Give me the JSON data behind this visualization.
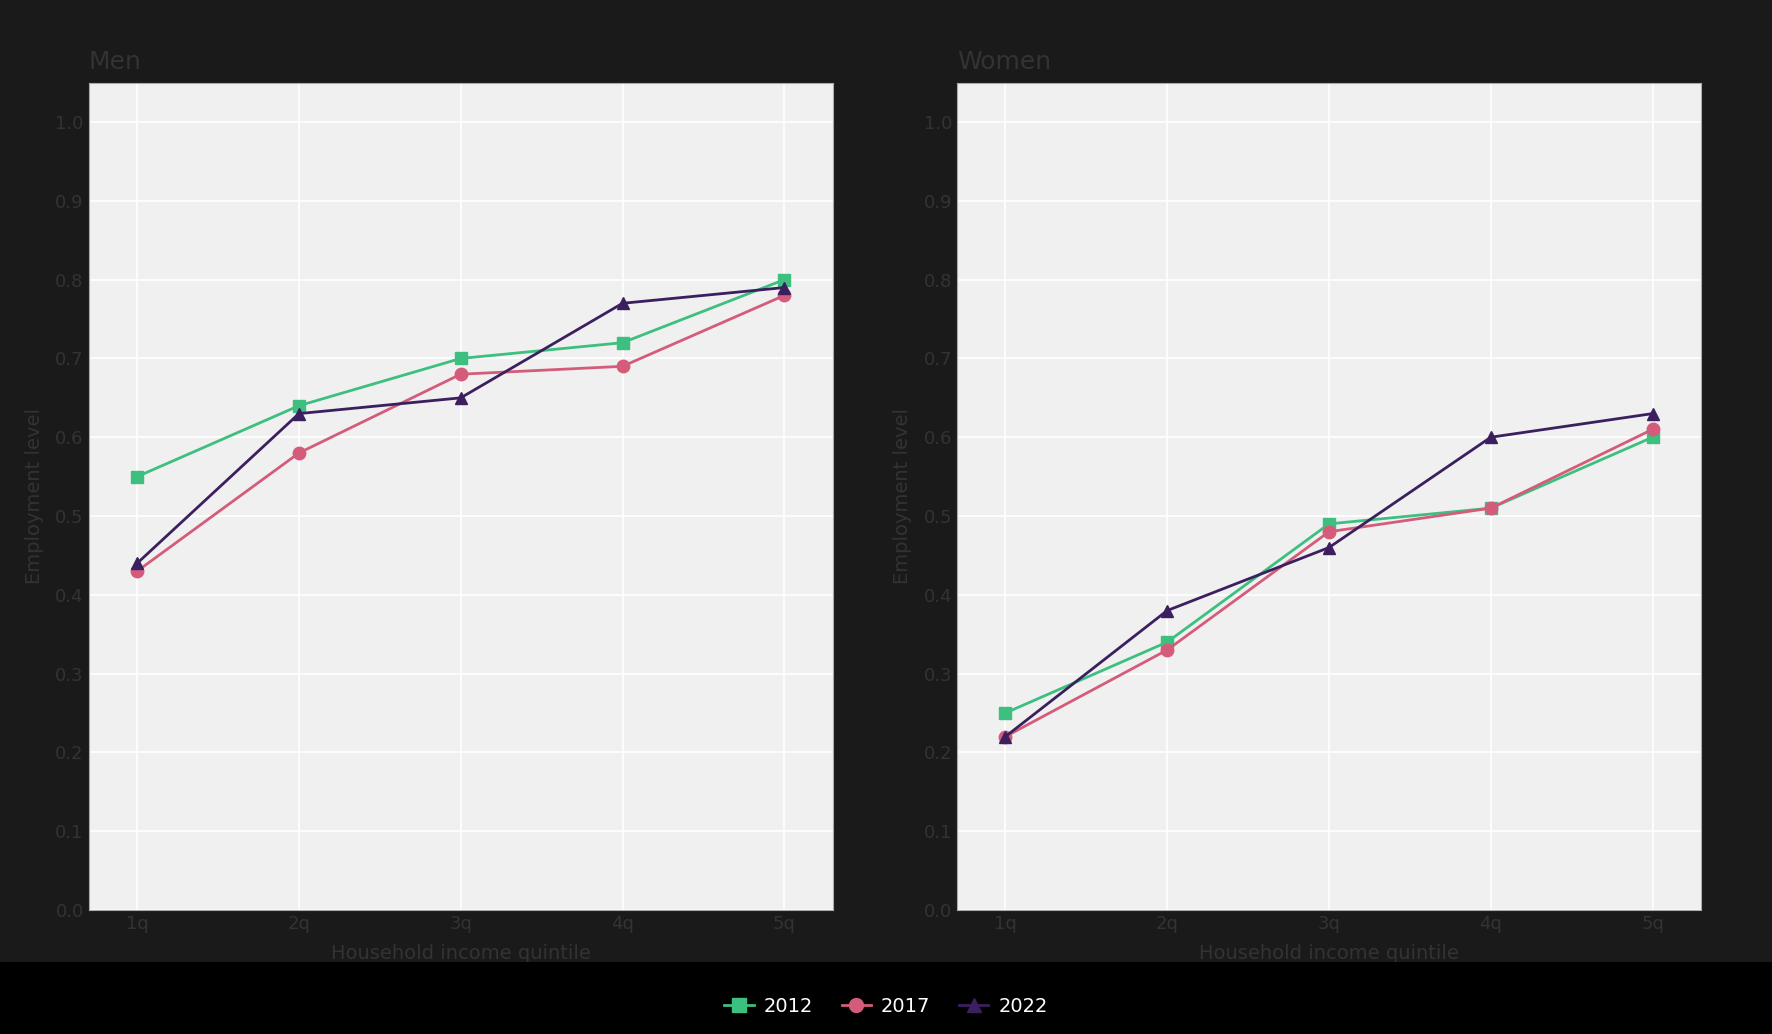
{
  "x_labels": [
    "1q",
    "2q",
    "3q",
    "4q",
    "5q"
  ],
  "x_values": [
    1,
    2,
    3,
    4,
    5
  ],
  "men": {
    "2012": [
      0.55,
      0.64,
      0.7,
      0.72,
      0.8
    ],
    "2017": [
      0.43,
      0.58,
      0.68,
      0.69,
      0.78
    ],
    "2022": [
      0.44,
      0.63,
      0.65,
      0.77,
      0.79
    ]
  },
  "women": {
    "2012": [
      0.25,
      0.34,
      0.49,
      0.51,
      0.6
    ],
    "2017": [
      0.22,
      0.33,
      0.48,
      0.51,
      0.61
    ],
    "2022": [
      0.22,
      0.38,
      0.46,
      0.6,
      0.63
    ]
  },
  "colors": {
    "2012": "#3dbf7f",
    "2017": "#d45c7a",
    "2022": "#3b1f5e"
  },
  "markers": {
    "2012": "s",
    "2017": "o",
    "2022": "^"
  },
  "ylabel": "Employment level",
  "xlabel": "Household income quintile",
  "title_men": "Men",
  "title_women": "Women",
  "ylim": [
    0.0,
    1.05
  ],
  "yticks": [
    0.0,
    0.1,
    0.2,
    0.3,
    0.4,
    0.5,
    0.6,
    0.7,
    0.8,
    0.9,
    1.0
  ],
  "bg_color": "#f0f0f0",
  "plot_bg": "#f0f0f0",
  "grid_color": "#ffffff",
  "legend_labels": [
    "2012",
    "2017",
    "2022"
  ]
}
